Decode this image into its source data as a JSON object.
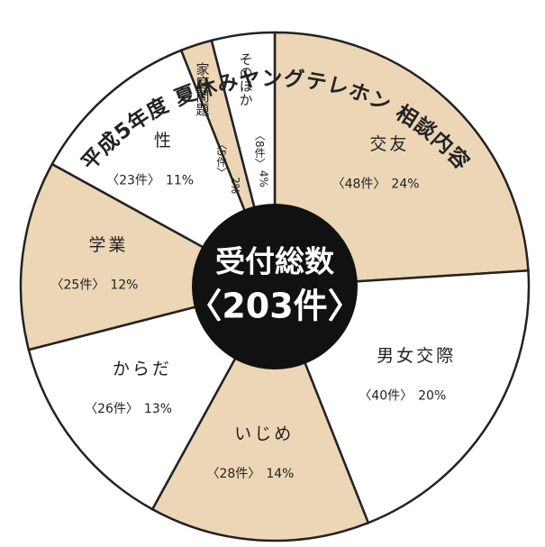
{
  "chart_data": {
    "type": "pie",
    "title": "平成5年度 夏休みヤングテレホン 相談内容",
    "center_label": "受付総数",
    "center_value_label": "〈203件〉",
    "categories": [
      "交友",
      "男女交際",
      "いじめ",
      "からだ",
      "学業",
      "性",
      "家庭問題",
      "そのほか"
    ],
    "values": [
      24,
      20,
      14,
      13,
      12,
      11,
      2,
      4
    ],
    "value_labels": [
      "24%",
      "20%",
      "14%",
      "13%",
      "12%",
      "11%",
      "2%",
      "4%"
    ],
    "count_labels": [
      "〈48件〉",
      "〈40件〉",
      "〈28件〉",
      "〈26件〉",
      "〈25件〉",
      "〈23件〉",
      "〈5件〉",
      "〈8件〉"
    ],
    "colors": [
      "#ecd6b6",
      "#ffffff",
      "#ecd6b6",
      "#ffffff",
      "#ecd6b6",
      "#ffffff",
      "#ecd6b6",
      "#ffffff"
    ]
  }
}
